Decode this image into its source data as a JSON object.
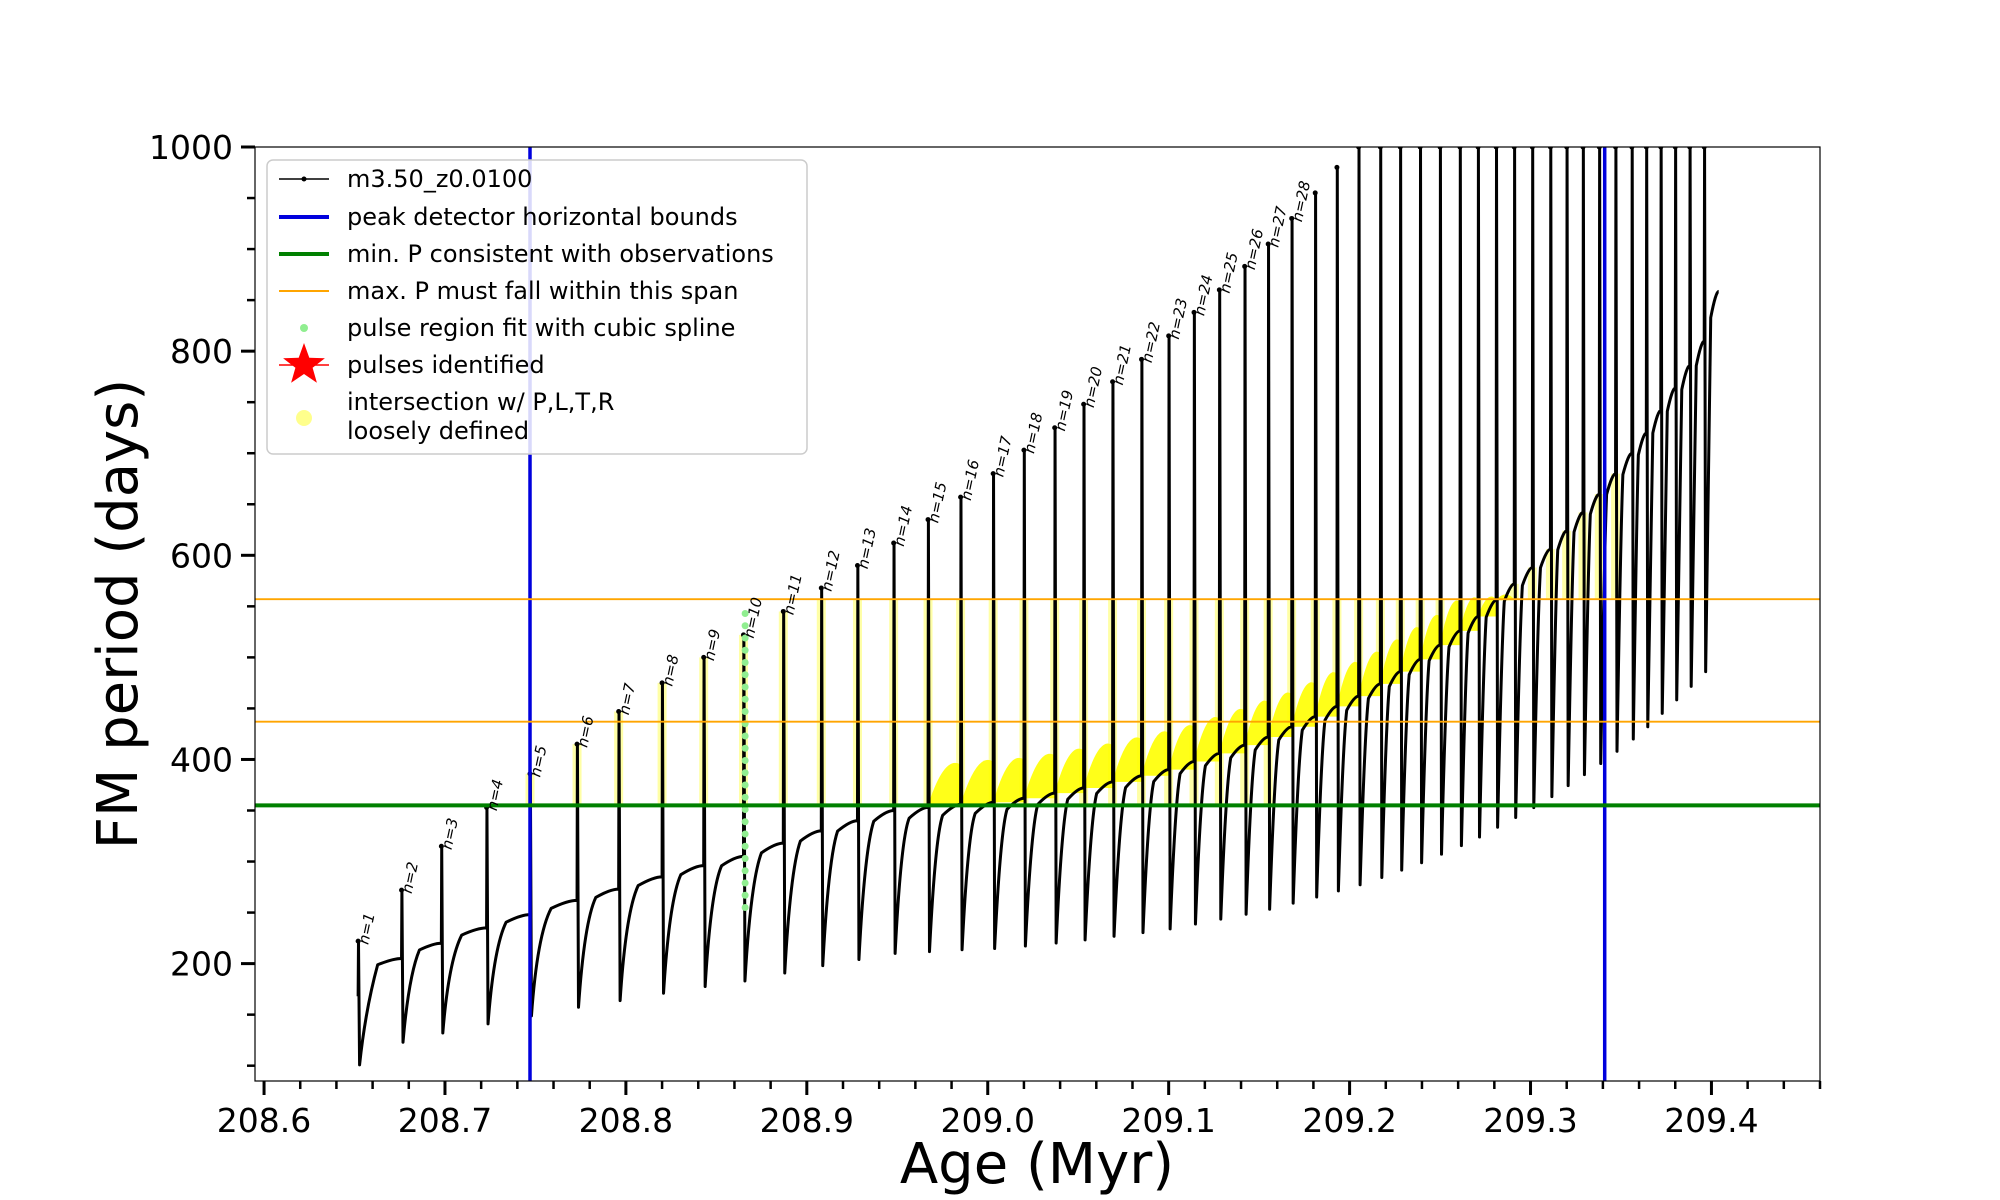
{
  "chart_data": {
    "type": "line",
    "title": "",
    "xlabel": "Age (Myr)",
    "ylabel": "FM period (days)",
    "xlim": [
      208.595,
      209.46
    ],
    "ylim": [
      85,
      1000
    ],
    "x_ticks": [
      208.6,
      208.7,
      208.8,
      208.9,
      209.0,
      209.1,
      209.2,
      209.3,
      209.4
    ],
    "x_tick_labels": [
      "208.6",
      "208.7",
      "208.8",
      "208.9",
      "209.0",
      "209.1",
      "209.2",
      "209.3",
      "209.4"
    ],
    "y_ticks": [
      200,
      400,
      600,
      800,
      1000
    ],
    "y_tick_labels": [
      "200",
      "400",
      "600",
      "800",
      "1000"
    ],
    "y_minor_step": 50,
    "x_minor_step": 0.02,
    "grid": false,
    "legend_position": "top-left",
    "colors": {
      "track": "#000000",
      "detector_bounds": "#0000dd",
      "min_period": "#008000",
      "max_period_span": "#ffa500",
      "spline": "#90ee90",
      "pulses": "#ff0000",
      "intersection": "#ffff00"
    },
    "legend": [
      {
        "label": "m3.50_z0.0100",
        "kind": "track"
      },
      {
        "label": "peak detector horizontal bounds",
        "kind": "detector_bounds"
      },
      {
        "label": "min. P consistent with observations",
        "kind": "min_period"
      },
      {
        "label": "max. P must fall within this span",
        "kind": "max_period_span"
      },
      {
        "label": "pulse region fit with cubic spline",
        "kind": "spline"
      },
      {
        "label": "pulses identified",
        "kind": "pulses"
      },
      {
        "label": "intersection w/ P,L,T,R",
        "label2": "loosely defined",
        "kind": "intersection"
      }
    ],
    "vertical_lines": [
      208.747,
      209.341
    ],
    "min_period_line": 355,
    "max_period_span": [
      437,
      557
    ],
    "pulse_labels": [
      "n=1",
      "n=2",
      "n=3",
      "n=4",
      "n=5",
      "n=6",
      "n=7",
      "n=8",
      "n=9",
      "n=10",
      "n=11",
      "n=12",
      "n=13",
      "n=14",
      "n=15",
      "n=16",
      "n=17",
      "n=18",
      "n=19",
      "n=20",
      "n=21",
      "n=22",
      "n=23",
      "n=24",
      "n=25",
      "n=26",
      "n=27",
      "n=28"
    ],
    "series": [
      {
        "name": "m3.50_z0.0100",
        "pulse_ages": [
          208.652,
          208.676,
          208.698,
          208.723,
          208.747,
          208.773,
          208.796,
          208.82,
          208.843,
          208.865,
          208.887,
          208.908,
          208.928,
          208.948,
          208.967,
          208.985,
          209.003,
          209.02,
          209.037,
          209.053,
          209.069,
          209.085,
          209.1,
          209.114,
          209.128,
          209.142,
          209.155,
          209.168,
          209.181,
          209.193,
          209.205,
          209.217,
          209.228,
          209.239,
          209.25,
          209.261,
          209.271,
          209.281,
          209.291,
          209.301,
          209.311,
          209.32,
          209.329,
          209.338,
          209.347,
          209.356,
          209.364,
          209.372,
          209.38,
          209.388,
          209.396
        ],
        "pulse_peaks": [
          222,
          272,
          315,
          353,
          386,
          415,
          447,
          475,
          500,
          522,
          545,
          568,
          590,
          612,
          635,
          657,
          680,
          703,
          725,
          748,
          770,
          792,
          815,
          838,
          860,
          883,
          905,
          930,
          955,
          980,
          1000,
          1000,
          1000,
          1000,
          1000,
          1000,
          1000,
          1000,
          1000,
          1000,
          1000,
          1000,
          1000,
          1000,
          1000,
          1000,
          1000,
          1000,
          1000,
          1000,
          1000
        ],
        "pulse_baselines": [
          168,
          205,
          220,
          235,
          248,
          262,
          273,
          285,
          296,
          305,
          318,
          330,
          340,
          350,
          353,
          356,
          358,
          362,
          367,
          372,
          378,
          384,
          390,
          398,
          406,
          414,
          422,
          432,
          442,
          452,
          462,
          474,
          486,
          498,
          512,
          526,
          540,
          556,
          572,
          588,
          606,
          624,
          642,
          660,
          680,
          700,
          720,
          742,
          764,
          786,
          810
        ]
      }
    ]
  }
}
